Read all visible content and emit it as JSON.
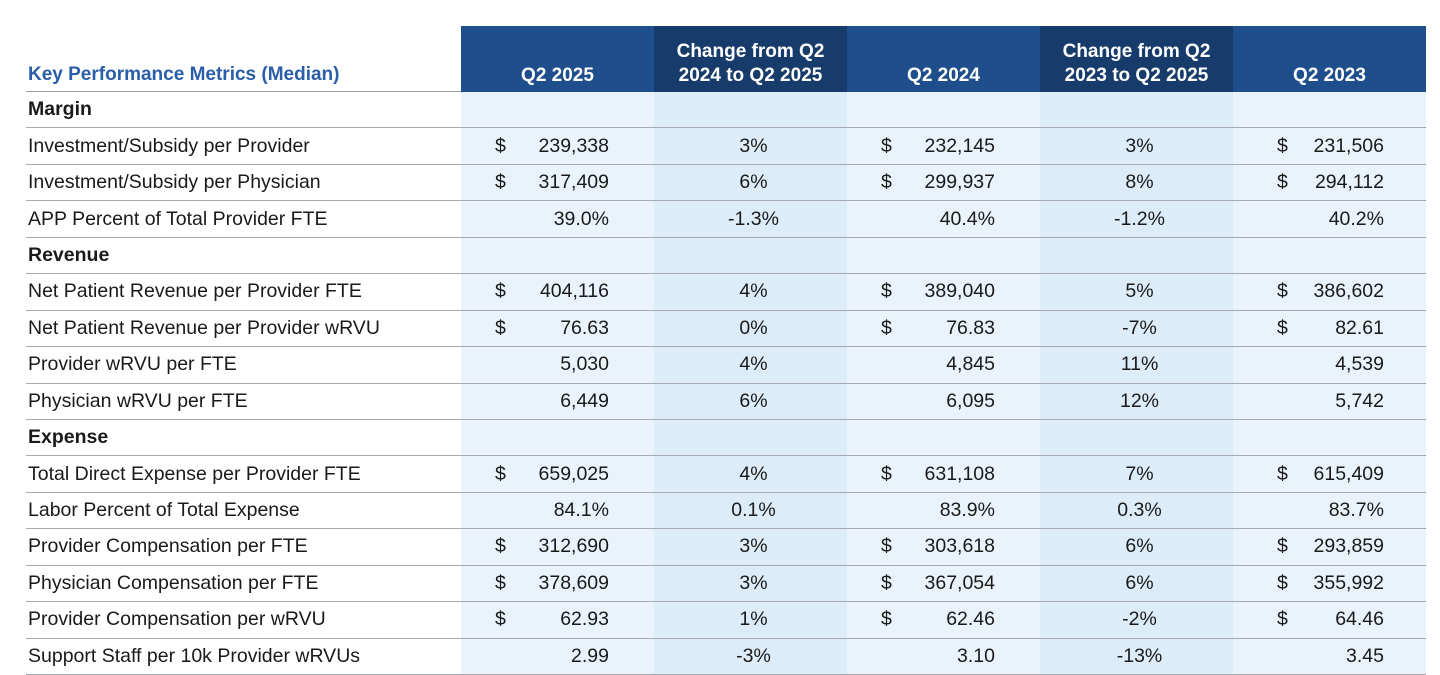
{
  "table": {
    "header": {
      "metric": "Key Performance Metrics (Median)",
      "columns": [
        {
          "line1": "",
          "line2": "Q2 2025"
        },
        {
          "line1": "Change from Q2",
          "line2": "2024 to Q2 2025"
        },
        {
          "line1": "",
          "line2": "Q2 2024"
        },
        {
          "line1": "Change from Q2",
          "line2": "2023 to Q2 2025"
        },
        {
          "line1": "",
          "line2": "Q2 2023"
        }
      ]
    },
    "rows": [
      {
        "label": "Margin",
        "section": true,
        "cells": [
          {},
          {},
          {},
          {},
          {}
        ]
      },
      {
        "label": "Investment/Subsidy per Provider",
        "cells": [
          {
            "cur": "$",
            "val": "239,338"
          },
          {
            "val": "3%"
          },
          {
            "cur": "$",
            "val": "232,145"
          },
          {
            "val": "3%"
          },
          {
            "cur": "$",
            "val": "231,506"
          }
        ]
      },
      {
        "label": "Investment/Subsidy per Physician",
        "cells": [
          {
            "cur": "$",
            "val": "317,409"
          },
          {
            "val": "6%"
          },
          {
            "cur": "$",
            "val": "299,937"
          },
          {
            "val": "8%"
          },
          {
            "cur": "$",
            "val": "294,112"
          }
        ]
      },
      {
        "label": "APP Percent of Total Provider FTE",
        "cells": [
          {
            "val": "39.0%"
          },
          {
            "val": "-1.3%"
          },
          {
            "val": "40.4%"
          },
          {
            "val": "-1.2%"
          },
          {
            "val": "40.2%"
          }
        ]
      },
      {
        "label": "Revenue",
        "section": true,
        "cells": [
          {},
          {},
          {},
          {},
          {}
        ]
      },
      {
        "label": "Net Patient Revenue per Provider FTE",
        "cells": [
          {
            "cur": "$",
            "val": "404,116"
          },
          {
            "val": "4%"
          },
          {
            "cur": "$",
            "val": "389,040"
          },
          {
            "val": "5%"
          },
          {
            "cur": "$",
            "val": "386,602"
          }
        ]
      },
      {
        "label": "Net Patient Revenue per Provider wRVU",
        "cells": [
          {
            "cur": "$",
            "val": "76.63"
          },
          {
            "val": "0%"
          },
          {
            "cur": "$",
            "val": "76.83"
          },
          {
            "val": "-7%"
          },
          {
            "cur": "$",
            "val": "82.61"
          }
        ]
      },
      {
        "label": "Provider wRVU per FTE",
        "cells": [
          {
            "val": "5,030"
          },
          {
            "val": "4%"
          },
          {
            "val": "4,845"
          },
          {
            "val": "11%"
          },
          {
            "val": "4,539"
          }
        ]
      },
      {
        "label": "Physician wRVU per FTE",
        "cells": [
          {
            "val": "6,449"
          },
          {
            "val": "6%"
          },
          {
            "val": "6,095"
          },
          {
            "val": "12%"
          },
          {
            "val": "5,742"
          }
        ]
      },
      {
        "label": "Expense",
        "section": true,
        "cells": [
          {},
          {},
          {},
          {},
          {}
        ]
      },
      {
        "label": "Total Direct Expense per Provider FTE",
        "cells": [
          {
            "cur": "$",
            "val": "659,025"
          },
          {
            "val": "4%"
          },
          {
            "cur": "$",
            "val": "631,108"
          },
          {
            "val": "7%"
          },
          {
            "cur": "$",
            "val": "615,409"
          }
        ]
      },
      {
        "label": "Labor Percent of Total Expense",
        "cells": [
          {
            "val": "84.1%"
          },
          {
            "val": "0.1%"
          },
          {
            "val": "83.9%"
          },
          {
            "val": "0.3%"
          },
          {
            "val": "83.7%"
          }
        ]
      },
      {
        "label": "Provider Compensation per FTE",
        "cells": [
          {
            "cur": "$",
            "val": "312,690"
          },
          {
            "val": "3%"
          },
          {
            "cur": "$",
            "val": "303,618"
          },
          {
            "val": "6%"
          },
          {
            "cur": "$",
            "val": "293,859"
          }
        ]
      },
      {
        "label": "Physician Compensation per FTE",
        "cells": [
          {
            "cur": "$",
            "val": "378,609"
          },
          {
            "val": "3%"
          },
          {
            "cur": "$",
            "val": "367,054"
          },
          {
            "val": "6%"
          },
          {
            "cur": "$",
            "val": "355,992"
          }
        ]
      },
      {
        "label": "Provider Compensation per wRVU",
        "cells": [
          {
            "cur": "$",
            "val": "62.93"
          },
          {
            "val": "1%"
          },
          {
            "cur": "$",
            "val": "62.46"
          },
          {
            "val": "-2%"
          },
          {
            "cur": "$",
            "val": "64.46"
          }
        ]
      },
      {
        "label": "Support Staff per 10k Provider wRVUs",
        "cells": [
          {
            "val": "2.99"
          },
          {
            "val": "-3%"
          },
          {
            "val": "3.10"
          },
          {
            "val": "-13%"
          },
          {
            "val": "3.45"
          }
        ]
      }
    ]
  }
}
